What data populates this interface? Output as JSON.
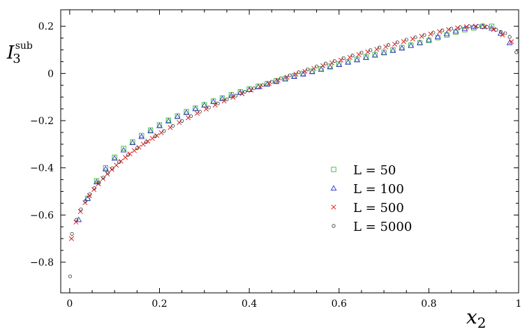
{
  "chart_data": {
    "type": "scatter",
    "title": "",
    "xlabel": "x",
    "xlabel_sub": "2",
    "ylabel": "I",
    "ylabel_sub": "3",
    "ylabel_sup": "sub",
    "xlim": [
      -0.02,
      1.0
    ],
    "ylim": [
      -0.93,
      0.27
    ],
    "xticks": [
      0,
      0.2,
      0.4,
      0.6,
      0.8,
      1
    ],
    "xtick_labels": [
      "0",
      "0.2",
      "0.4",
      "0.6",
      "0.8",
      "1"
    ],
    "yticks": [
      -0.8,
      -0.6,
      -0.4,
      -0.2,
      0,
      0.2
    ],
    "ytick_labels": [
      "−0.8",
      "−0.6",
      "−0.4",
      "−0.2",
      "0",
      "0.2"
    ],
    "grid": false,
    "legend_position": "lower-right",
    "series": [
      {
        "name": "L = 50",
        "color": "#33bb33",
        "marker": "square",
        "x": [
          0.04,
          0.06,
          0.08,
          0.1,
          0.12,
          0.14,
          0.16,
          0.18,
          0.2,
          0.22,
          0.24,
          0.26,
          0.28,
          0.3,
          0.32,
          0.34,
          0.36,
          0.38,
          0.4,
          0.42,
          0.44,
          0.46,
          0.48,
          0.5,
          0.52,
          0.54,
          0.56,
          0.58,
          0.6,
          0.62,
          0.64,
          0.66,
          0.68,
          0.7,
          0.72,
          0.74,
          0.76,
          0.78,
          0.8,
          0.82,
          0.84,
          0.86,
          0.88,
          0.9,
          0.92,
          0.94
        ],
        "y": [
          -0.53,
          -0.455,
          -0.4,
          -0.355,
          -0.318,
          -0.29,
          -0.263,
          -0.24,
          -0.218,
          -0.198,
          -0.18,
          -0.162,
          -0.147,
          -0.132,
          -0.117,
          -0.104,
          -0.09,
          -0.078,
          -0.066,
          -0.054,
          -0.043,
          -0.031,
          -0.021,
          -0.01,
          0.0,
          0.01,
          0.02,
          0.031,
          0.04,
          0.05,
          0.06,
          0.07,
          0.08,
          0.09,
          0.1,
          0.11,
          0.12,
          0.13,
          0.14,
          0.152,
          0.163,
          0.175,
          0.185,
          0.193,
          0.2,
          0.2
        ]
      },
      {
        "name": "L = 100",
        "color": "#3333cc",
        "marker": "triangle",
        "x": [
          0.02,
          0.04,
          0.06,
          0.08,
          0.1,
          0.12,
          0.14,
          0.16,
          0.18,
          0.2,
          0.22,
          0.24,
          0.26,
          0.28,
          0.3,
          0.32,
          0.34,
          0.36,
          0.38,
          0.4,
          0.42,
          0.44,
          0.46,
          0.48,
          0.5,
          0.52,
          0.54,
          0.56,
          0.58,
          0.6,
          0.62,
          0.64,
          0.66,
          0.68,
          0.7,
          0.72,
          0.74,
          0.76,
          0.78,
          0.8,
          0.82,
          0.84,
          0.86,
          0.88,
          0.9,
          0.92,
          0.94,
          0.96,
          0.98
        ],
        "y": [
          -0.62,
          -0.53,
          -0.46,
          -0.405,
          -0.36,
          -0.325,
          -0.294,
          -0.268,
          -0.244,
          -0.222,
          -0.202,
          -0.183,
          -0.166,
          -0.15,
          -0.135,
          -0.12,
          -0.107,
          -0.094,
          -0.081,
          -0.069,
          -0.057,
          -0.046,
          -0.035,
          -0.024,
          -0.013,
          -0.003,
          0.007,
          0.017,
          0.027,
          0.037,
          0.047,
          0.057,
          0.067,
          0.077,
          0.087,
          0.097,
          0.107,
          0.118,
          0.13,
          0.142,
          0.155,
          0.167,
          0.179,
          0.19,
          0.198,
          0.2,
          0.192,
          0.17,
          0.13
        ]
      },
      {
        "name": "L = 500",
        "color": "#dd2222",
        "marker": "cross",
        "x": [
          0.004,
          0.014,
          0.024,
          0.034,
          0.044,
          0.054,
          0.064,
          0.074,
          0.084,
          0.094,
          0.104,
          0.114,
          0.124,
          0.134,
          0.144,
          0.154,
          0.164,
          0.174,
          0.184,
          0.194,
          0.204,
          0.224,
          0.244,
          0.264,
          0.284,
          0.304,
          0.324,
          0.344,
          0.364,
          0.384,
          0.404,
          0.424,
          0.444,
          0.464,
          0.484,
          0.504,
          0.524,
          0.544,
          0.564,
          0.584,
          0.604,
          0.624,
          0.644,
          0.664,
          0.684,
          0.704,
          0.724,
          0.744,
          0.764,
          0.784,
          0.804,
          0.824,
          0.844,
          0.864,
          0.884,
          0.904,
          0.924,
          0.944,
          0.964,
          0.984
        ],
        "y": [
          -0.7,
          -0.63,
          -0.585,
          -0.548,
          -0.518,
          -0.492,
          -0.468,
          -0.446,
          -0.426,
          -0.407,
          -0.389,
          -0.372,
          -0.356,
          -0.341,
          -0.327,
          -0.313,
          -0.3,
          -0.287,
          -0.275,
          -0.263,
          -0.251,
          -0.229,
          -0.208,
          -0.188,
          -0.169,
          -0.151,
          -0.134,
          -0.117,
          -0.101,
          -0.086,
          -0.071,
          -0.056,
          -0.042,
          -0.029,
          -0.016,
          -0.003,
          0.009,
          0.021,
          0.033,
          0.045,
          0.057,
          0.068,
          0.08,
          0.091,
          0.102,
          0.113,
          0.124,
          0.135,
          0.146,
          0.157,
          0.167,
          0.177,
          0.186,
          0.193,
          0.198,
          0.2,
          0.197,
          0.186,
          0.163,
          0.135
        ]
      },
      {
        "name": "L = 5000",
        "color": "#333333",
        "marker": "circle",
        "x": [
          0.001,
          0.005,
          0.015,
          0.025,
          0.035,
          0.045,
          0.055,
          0.065,
          0.075,
          0.085,
          0.095,
          0.11,
          0.13,
          0.15,
          0.17,
          0.19,
          0.21,
          0.23,
          0.25,
          0.27,
          0.29,
          0.31,
          0.33,
          0.35,
          0.37,
          0.39,
          0.41,
          0.43,
          0.45,
          0.47,
          0.49,
          0.51,
          0.53,
          0.55,
          0.57,
          0.59,
          0.61,
          0.63,
          0.65,
          0.67,
          0.69,
          0.71,
          0.73,
          0.75,
          0.77,
          0.79,
          0.81,
          0.83,
          0.85,
          0.87,
          0.89,
          0.91,
          0.93,
          0.95,
          0.96,
          0.97,
          0.98,
          0.995
        ],
        "y": [
          -0.86,
          -0.68,
          -0.62,
          -0.576,
          -0.541,
          -0.512,
          -0.486,
          -0.463,
          -0.441,
          -0.421,
          -0.402,
          -0.376,
          -0.345,
          -0.317,
          -0.291,
          -0.267,
          -0.244,
          -0.222,
          -0.201,
          -0.181,
          -0.162,
          -0.144,
          -0.127,
          -0.11,
          -0.094,
          -0.078,
          -0.063,
          -0.049,
          -0.035,
          -0.021,
          -0.008,
          0.005,
          0.017,
          0.03,
          0.042,
          0.053,
          0.065,
          0.076,
          0.088,
          0.099,
          0.11,
          0.121,
          0.132,
          0.143,
          0.153,
          0.163,
          0.173,
          0.182,
          0.19,
          0.196,
          0.2,
          0.201,
          0.197,
          0.185,
          0.177,
          0.17,
          0.155,
          0.09
        ]
      }
    ]
  }
}
